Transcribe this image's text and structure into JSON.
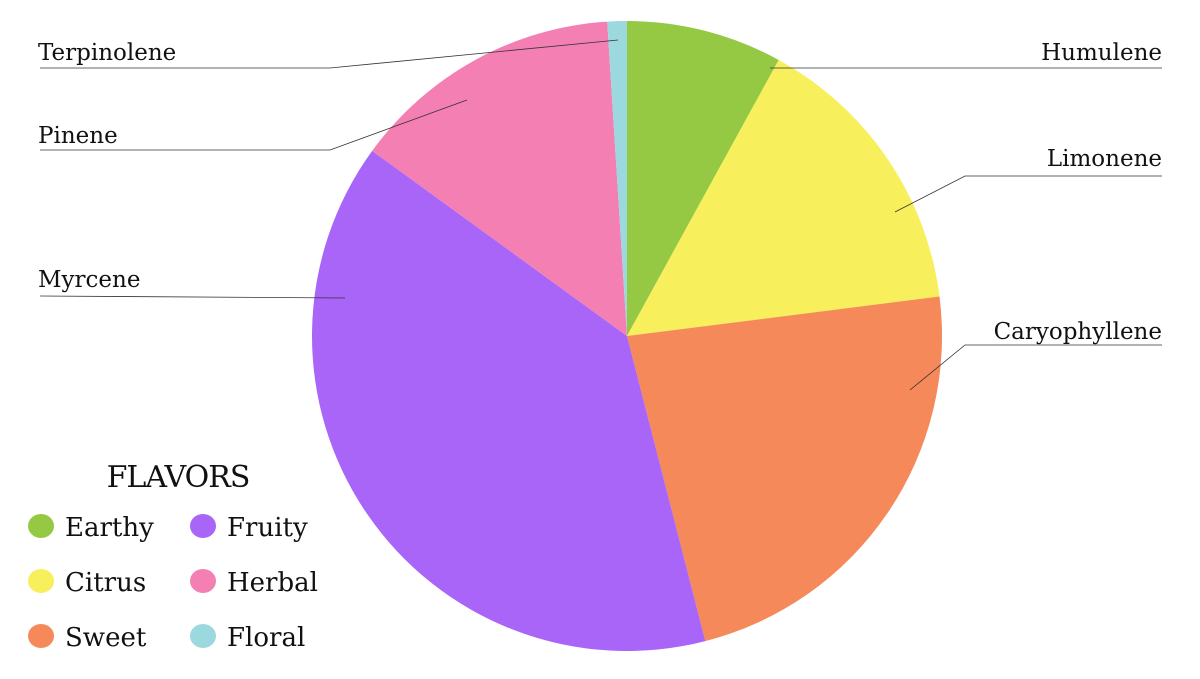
{
  "chart_data": {
    "type": "pie",
    "title": "",
    "slices": [
      {
        "label": "Humulene",
        "value": 8,
        "flavor": "Earthy",
        "color": "#96c943"
      },
      {
        "label": "Limonene",
        "value": 15,
        "flavor": "Citrus",
        "color": "#f8ef5c"
      },
      {
        "label": "Caryophyllene",
        "value": 23,
        "flavor": "Sweet",
        "color": "#f6895a"
      },
      {
        "label": "Myrcene",
        "value": 39,
        "flavor": "Fruity",
        "color": "#a865f8"
      },
      {
        "label": "Pinene",
        "value": 14,
        "flavor": "Herbal",
        "color": "#f47fb3"
      },
      {
        "label": "Terpinolene",
        "value": 1,
        "flavor": "Floral",
        "color": "#9cd9de"
      }
    ],
    "start": "12 o'clock, clockwise",
    "legend": {
      "title": "FLAVORS",
      "placement": "bottom-left",
      "items": [
        {
          "label": "Earthy",
          "color": "#96c943"
        },
        {
          "label": "Fruity",
          "color": "#a865f8"
        },
        {
          "label": "Citrus",
          "color": "#f8ef5c"
        },
        {
          "label": "Herbal",
          "color": "#f47fb3"
        },
        {
          "label": "Sweet",
          "color": "#f6895a"
        },
        {
          "label": "Floral",
          "color": "#9cd9de"
        }
      ]
    }
  }
}
